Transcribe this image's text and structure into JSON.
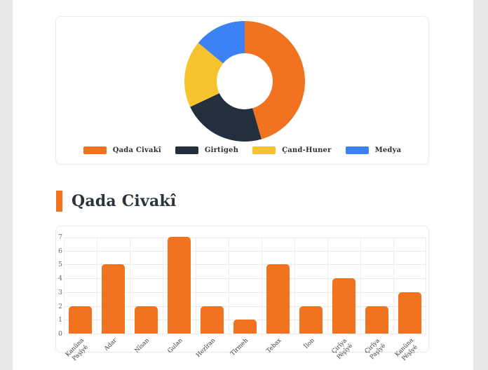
{
  "section": {
    "title": "Qada Civakî"
  },
  "colors": {
    "accent_orange": "#F1721F",
    "navy": "#242F3E",
    "yellow": "#F6C22E",
    "blue": "#3D82F4",
    "card_border": "#ECECEC",
    "page_margin_gray": "#E9E9E9",
    "title_text": "#2D333C"
  },
  "chart_data": [
    {
      "type": "pie",
      "variant": "doughnut",
      "labels": [
        "Qada Civakî",
        "Girtîgeh",
        "Çand-Huner",
        "Medya"
      ],
      "values_percent_estimated": [
        45.5,
        22.5,
        18,
        14
      ],
      "colors": [
        "#F1721F",
        "#242F3E",
        "#F6C22E",
        "#3D82F4"
      ],
      "start_angle_deg": 0,
      "clockwise": true,
      "inner_radius_ratio": 0.46,
      "legend_position": "bottom"
    },
    {
      "type": "bar",
      "title": "Qada Civakî",
      "categories": [
        "Kanûna Paşîyê",
        "Adar",
        "Nîsan",
        "Gulan",
        "Hezîran",
        "Tîrmeh",
        "Tebax",
        "Îlon",
        "Çirîya Pêşîyê",
        "Çirîya Paşîyê",
        "Kanûna Pêşîyê"
      ],
      "categories_display": [
        [
          "Kanûna",
          "Paşîyê"
        ],
        [
          "Adar"
        ],
        [
          "Nîsan"
        ],
        [
          "Gulan"
        ],
        [
          "Hezîran"
        ],
        [
          "Tîrmeh"
        ],
        [
          "Tebax"
        ],
        [
          "Îlon"
        ],
        [
          "Çirîya",
          "Pêşîyê"
        ],
        [
          "Çirîya",
          "Paşîyê"
        ],
        [
          "Kanûna",
          "Pêşîyê"
        ]
      ],
      "values": [
        2,
        5,
        2,
        7,
        2,
        1,
        5,
        2,
        4,
        2,
        3
      ],
      "bar_color": "#F1721F",
      "ylim": [
        0,
        7
      ],
      "yticks": [
        0,
        1,
        2,
        3,
        4,
        5,
        6,
        7
      ],
      "grid": true,
      "x_label_rotation_deg": 45,
      "legend_position": "none"
    }
  ]
}
